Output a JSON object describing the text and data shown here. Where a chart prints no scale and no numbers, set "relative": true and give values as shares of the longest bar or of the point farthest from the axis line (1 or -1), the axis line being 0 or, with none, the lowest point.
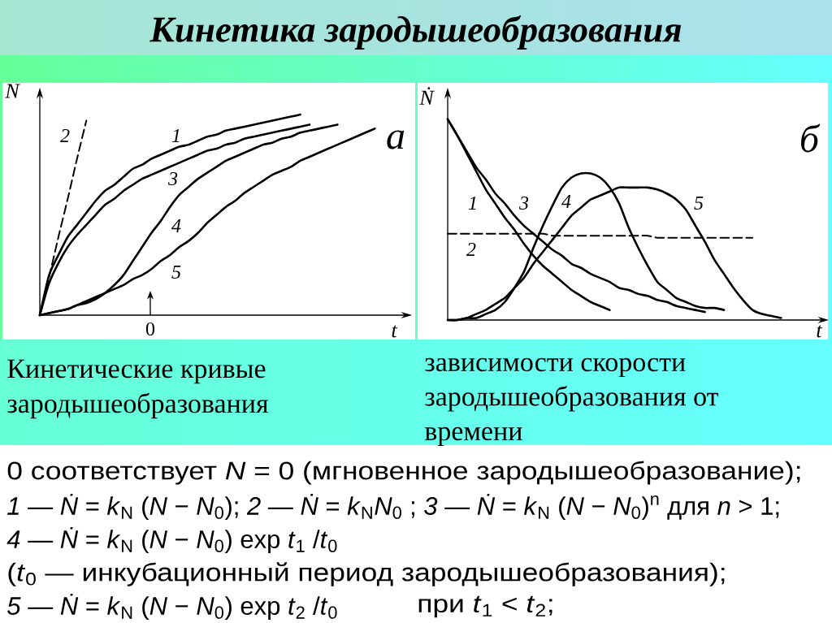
{
  "chart_data": [
    {
      "type": "line",
      "title": "Кинетика зародышеобразования",
      "xlabel": "t",
      "ylabel": "N",
      "relative": true,
      "categories": [
        null,
        null,
        null,
        null,
        null,
        null,
        null,
        null,
        null,
        null,
        null,
        null,
        null,
        null,
        null,
        null,
        null,
        null,
        null,
        null,
        null,
        null,
        null,
        null,
        null,
        null,
        null,
        null,
        null,
        null,
        null,
        null,
        null,
        null,
        null,
        null,
        null,
        null,
        null,
        null,
        null
      ],
      "series": [
        {
          "name": "1",
          "color": "#000000",
          "values": [
            0,
            0.2,
            0.3,
            0.39,
            0.45,
            0.51,
            0.57,
            0.62,
            0.65,
            0.69,
            0.73,
            0.75,
            0.78,
            0.8,
            0.82,
            0.84,
            0.85,
            0.87,
            0.89,
            0.9,
            0.92,
            0.93,
            0.94,
            0.95,
            0.96,
            0.97,
            0.98,
            0.99,
            1.0,
            null,
            null,
            null,
            null,
            null,
            null,
            null,
            null,
            null,
            null,
            null,
            null
          ]
        },
        {
          "name": "2",
          "color": "#000000",
          "line_style": "dashed",
          "values": [
            0,
            0.19,
            0.39,
            0.58,
            0.78,
            0.97,
            null,
            null,
            null,
            null,
            null,
            null,
            null,
            null,
            null,
            null,
            null,
            null,
            null,
            null,
            null,
            null,
            null,
            null,
            null,
            null,
            null,
            null,
            null,
            null,
            null,
            null,
            null,
            null,
            null,
            null,
            null,
            null,
            null,
            null,
            null
          ]
        },
        {
          "name": "3",
          "color": "#000000",
          "values": [
            0,
            0.16,
            0.26,
            0.34,
            0.4,
            0.45,
            0.5,
            0.55,
            0.58,
            0.62,
            0.65,
            0.68,
            0.7,
            0.72,
            0.74,
            0.76,
            0.78,
            0.8,
            0.82,
            0.83,
            0.85,
            0.86,
            0.88,
            0.89,
            0.9,
            0.91,
            0.92,
            0.93,
            0.94,
            0.95,
            null,
            null,
            null,
            null,
            null,
            null,
            null,
            null,
            null,
            null,
            null
          ]
        },
        {
          "name": "4",
          "color": "#000000",
          "values": [
            0,
            0.01,
            0.02,
            0.03,
            0.05,
            0.06,
            0.08,
            0.11,
            0.15,
            0.2,
            0.27,
            0.34,
            0.41,
            0.47,
            0.54,
            0.6,
            0.64,
            0.68,
            0.71,
            0.74,
            0.77,
            0.79,
            0.81,
            0.83,
            0.85,
            0.86,
            0.88,
            0.89,
            0.91,
            0.92,
            0.93,
            0.94,
            0.95,
            null,
            null,
            null,
            null,
            null,
            null,
            null,
            null
          ]
        },
        {
          "name": "5",
          "color": "#000000",
          "values": [
            0,
            0.01,
            0.02,
            0.03,
            0.05,
            0.07,
            0.09,
            0.11,
            0.13,
            0.15,
            0.18,
            0.2,
            0.23,
            0.27,
            0.3,
            0.34,
            0.37,
            0.41,
            0.46,
            0.5,
            0.54,
            0.57,
            0.61,
            0.64,
            0.67,
            0.7,
            0.72,
            0.74,
            0.77,
            0.79,
            0.81,
            0.83,
            0.85,
            0.87,
            0.89,
            0.91,
            0.93,
            null,
            null,
            null,
            null
          ]
        }
      ],
      "annotations": [
        "а",
        "0",
        "Кинетические кривые зародышеобразования",
        "0 соответствует *N* = 0 (мгновенное зародышеобразование);",
        "*1* — *Ṅ* = *k*$_{N}$ (*N* − *N*$_{0}$);  *2* — *Ṅ* = *k*$_{N}$*N*$_{0}$ ; *3* — *Ṅ* = *k*$_{N}$ (*N* − *N*$_{0}$)$^{n}$  для *n* > 1;",
        "*4* — *Ṅ* = *k*$_{N}$ (*N* − *N*$_{0}$) exp *t*$_{1}$ /*t*$_{0}$",
        "(*t*$_{0}$ — инкубационный период зародышеобразования);",
        "*5* — *Ṅ* = *k*$_{N}$ (*N* − *N*$_{0}$) exp *t*$_{2}$ /*t*$_{0}$",
        "при *t*$_{1}$ < *t*$_{2}$;"
      ]
    },
    {
      "type": "line",
      "xlabel": "t",
      "ylabel": "Ṅ",
      "relative": true,
      "categories": [
        null,
        null,
        null,
        null,
        null,
        null,
        null,
        null,
        null,
        null,
        null,
        null,
        null,
        null,
        null,
        null,
        null,
        null,
        null,
        null,
        null,
        null,
        null,
        null,
        null,
        null,
        null,
        null,
        null,
        null,
        null,
        null,
        null,
        null,
        null,
        null,
        null,
        null,
        null,
        null,
        null
      ],
      "series": [
        {
          "name": "1",
          "color": "#000000",
          "values": [
            1.0,
            0.92,
            0.83,
            0.74,
            0.65,
            0.58,
            0.51,
            0.45,
            0.38,
            0.32,
            0.27,
            0.23,
            0.19,
            0.15,
            0.12,
            0.09,
            0.07,
            0.05,
            null,
            null,
            null,
            null,
            null,
            null,
            null,
            null,
            null,
            null,
            null,
            null,
            null,
            null,
            null,
            null,
            null,
            null,
            null,
            null,
            null,
            null,
            null
          ]
        },
        {
          "name": "2",
          "color": "#000000",
          "line_style": "dashed",
          "values": [
            0.43,
            0.43,
            0.43,
            0.43,
            0.43,
            0.43,
            0.43,
            0.43,
            0.43,
            0.43,
            0.43,
            0.42,
            0.42,
            0.42,
            0.42,
            0.42,
            0.42,
            0.42,
            0.42,
            0.42,
            0.42,
            0.42,
            0.41,
            0.41,
            0.41,
            0.41,
            0.41,
            0.41,
            0.41,
            0.41,
            0.41,
            0.41,
            0.41,
            null,
            null,
            null,
            null,
            null,
            null,
            null,
            null
          ]
        },
        {
          "name": "3",
          "color": "#000000",
          "values": [
            1.0,
            0.92,
            0.84,
            0.76,
            0.7,
            0.63,
            0.58,
            0.52,
            0.47,
            0.43,
            0.39,
            0.35,
            0.32,
            0.28,
            0.26,
            0.23,
            0.21,
            0.19,
            0.16,
            0.15,
            0.13,
            0.12,
            0.1,
            0.09,
            0.07,
            0.06,
            0.05,
            0.04,
            null,
            null,
            null,
            null,
            null,
            null,
            null,
            null,
            null,
            null,
            null,
            null,
            null
          ]
        },
        {
          "name": "4",
          "color": "#000000",
          "values": [
            0,
            0.0,
            0.01,
            0.01,
            0.03,
            0.05,
            0.09,
            0.16,
            0.24,
            0.36,
            0.47,
            0.57,
            0.66,
            0.71,
            0.73,
            0.73,
            0.71,
            0.66,
            0.58,
            0.46,
            0.36,
            0.27,
            0.19,
            0.15,
            0.11,
            0.09,
            0.07,
            0.06,
            0.06,
            0.05,
            null,
            null,
            null,
            null,
            null,
            null,
            null,
            null,
            null,
            null,
            null
          ]
        },
        {
          "name": "5",
          "color": "#000000",
          "values": [
            0,
            0.0,
            0.01,
            0.03,
            0.05,
            0.08,
            0.11,
            0.16,
            0.21,
            0.28,
            0.34,
            0.4,
            0.46,
            0.52,
            0.56,
            0.6,
            0.62,
            0.64,
            0.66,
            0.66,
            0.66,
            0.66,
            0.65,
            0.63,
            0.6,
            0.55,
            0.47,
            0.39,
            0.3,
            0.23,
            0.16,
            0.1,
            0.05,
            0.03,
            0.02,
            0.01,
            null,
            null,
            null,
            null,
            null
          ]
        }
      ],
      "annotations": [
        "б",
        "зависимости скорости зародышеобразования от времени"
      ]
    }
  ]
}
